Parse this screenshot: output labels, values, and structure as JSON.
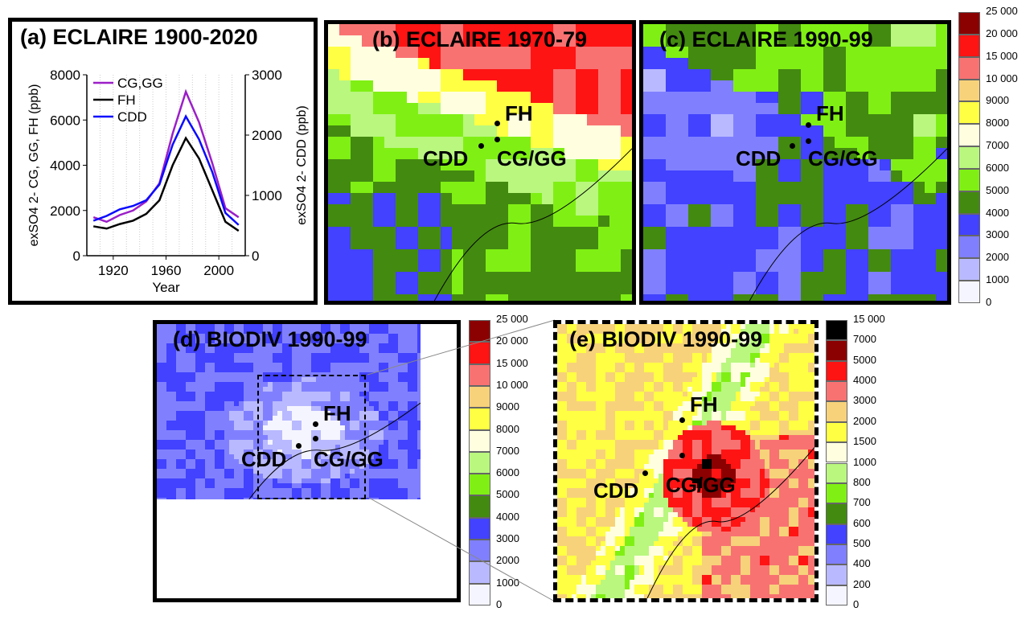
{
  "panels": {
    "a": {
      "title": "(a) ECLAIRE 1900-2020"
    },
    "b": {
      "title": "(b) ECLAIRE 1970-79"
    },
    "c": {
      "title": "(c) ECLAIRE 1990-99"
    },
    "d": {
      "title": "(d) BIODIV 1990-99"
    },
    "e": {
      "title": "(e) BIODIV 1990-99"
    }
  },
  "site_labels": {
    "fh": "FH",
    "cdd": "CDD",
    "cggg": "CG/GG"
  },
  "colorbar_main": {
    "labels": [
      "25 000",
      "20 000",
      "15 000",
      "10 000",
      "9000",
      "8000",
      "7000",
      "6000",
      "5000",
      "4000",
      "3000",
      "2000",
      "1000",
      "0"
    ],
    "colors": [
      "#8b0000",
      "#ff1414",
      "#f87272",
      "#f7d27a",
      "#ffff44",
      "#ffffe0",
      "#b9f77f",
      "#80f014",
      "#438a10",
      "#4242ff",
      "#8080ff",
      "#b9b9ff",
      "#f5f5ff"
    ]
  },
  "colorbar_e": {
    "labels": [
      "15 000",
      "7000",
      "5000",
      "4000",
      "3000",
      "2000",
      "1500",
      "1000",
      "800",
      "700",
      "600",
      "500",
      "400",
      "200",
      "0"
    ],
    "colors": [
      "#000000",
      "#8b0000",
      "#ff1414",
      "#f87272",
      "#f7d27a",
      "#ffff44",
      "#ffffe0",
      "#b9f77f",
      "#80f014",
      "#438a10",
      "#4242ff",
      "#8080ff",
      "#b9b9ff",
      "#f5f5ff"
    ]
  },
  "chart_data": {
    "type": "line",
    "x": [
      1905,
      1915,
      1925,
      1935,
      1945,
      1955,
      1965,
      1975,
      1985,
      1995,
      2005,
      2015
    ],
    "xlabel": "Year",
    "xticks": [
      "1920",
      "1960",
      "2000"
    ],
    "xlim": [
      1900,
      2020
    ],
    "ylabel_left": "exSO4 2- CG, GG, FH (ppb)",
    "ylabel_right": "exSO4 2- CDD (ppb)",
    "ylim_left": [
      0,
      8000
    ],
    "ylim_right": [
      0,
      3000
    ],
    "yticks_left": [
      "0",
      "2000",
      "4000",
      "6000",
      "8000"
    ],
    "yticks_right": [
      "0",
      "1000",
      "2000",
      "3000"
    ],
    "grid": "vertical dotted",
    "legend": "top-left",
    "series": [
      {
        "name": "CG,GG",
        "axis": "left",
        "color": "#9b1fc8",
        "values": [
          1700,
          1500,
          1800,
          2000,
          2400,
          3200,
          5400,
          7250,
          5900,
          4100,
          2100,
          1700
        ]
      },
      {
        "name": "FH",
        "axis": "left",
        "color": "#000000",
        "values": [
          1300,
          1200,
          1400,
          1550,
          1850,
          2450,
          4000,
          5200,
          4300,
          2900,
          1500,
          1100
        ]
      },
      {
        "name": "CDD",
        "axis": "right",
        "color": "#0a0aff",
        "values": [
          580,
          660,
          770,
          825,
          920,
          1180,
          1840,
          2310,
          1930,
          1390,
          710,
          510
        ]
      }
    ]
  }
}
